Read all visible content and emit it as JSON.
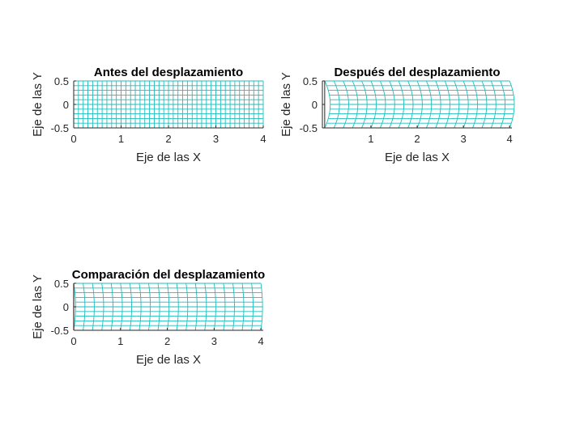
{
  "colors": {
    "mesh": "#1fbdbd",
    "edge": "#e8251f",
    "axis": "#262626"
  },
  "chart_data": [
    {
      "type": "mesh",
      "variant": "undeformed",
      "title": "Antes del desplazamiento",
      "xlabel": "Eje de las X",
      "ylabel": "Eje de las Y",
      "xlim": [
        0,
        4
      ],
      "ylim": [
        -0.5,
        0.5
      ],
      "xticks": [
        0,
        1,
        2,
        3,
        4
      ],
      "xtick_labels": [
        "0",
        "1",
        "2",
        "3",
        "4"
      ],
      "yticks": [
        0.5,
        0,
        -0.5
      ],
      "ytick_labels": [
        "0.5",
        "0",
        "-0.5"
      ],
      "mesh": {
        "x_divisions": 40,
        "y_divisions": 10,
        "length": 4,
        "height": 1
      }
    },
    {
      "type": "mesh",
      "variant": "deformed",
      "title": "Después del desplazamiento",
      "xlabel": "Eje de las X",
      "ylabel": "Eje de las Y",
      "xlim": [
        -0.05,
        4.05
      ],
      "ylim": [
        -0.5,
        0.5
      ],
      "xticks": [
        1,
        2,
        3,
        4
      ],
      "xtick_labels": [
        "1",
        "2",
        "3",
        "4"
      ],
      "yticks": [
        0.5,
        0,
        -0.5
      ],
      "ytick_labels": [
        "0.5",
        "0",
        "-0.5"
      ],
      "mesh": {
        "x_divisions": 20,
        "y_divisions": 10,
        "length": 4,
        "height": 1,
        "max_shift": 0.12
      }
    },
    {
      "type": "mesh",
      "variant": "comparison",
      "title": "Comparación del desplazamiento",
      "xlabel": "Eje de las X",
      "ylabel": "Eje de las Y",
      "xlim": [
        0,
        4.05
      ],
      "ylim": [
        -0.5,
        0.5
      ],
      "xticks": [
        0,
        1,
        2,
        3,
        4
      ],
      "xtick_labels": [
        "0",
        "1",
        "2",
        "3",
        "4"
      ],
      "yticks": [
        0.5,
        0,
        -0.5
      ],
      "ytick_labels": [
        "0.5",
        "0",
        "-0.5"
      ],
      "mesh": {
        "x_divisions": 20,
        "y_divisions": 10,
        "length": 4,
        "height": 1,
        "max_shift": 0.04
      }
    }
  ]
}
